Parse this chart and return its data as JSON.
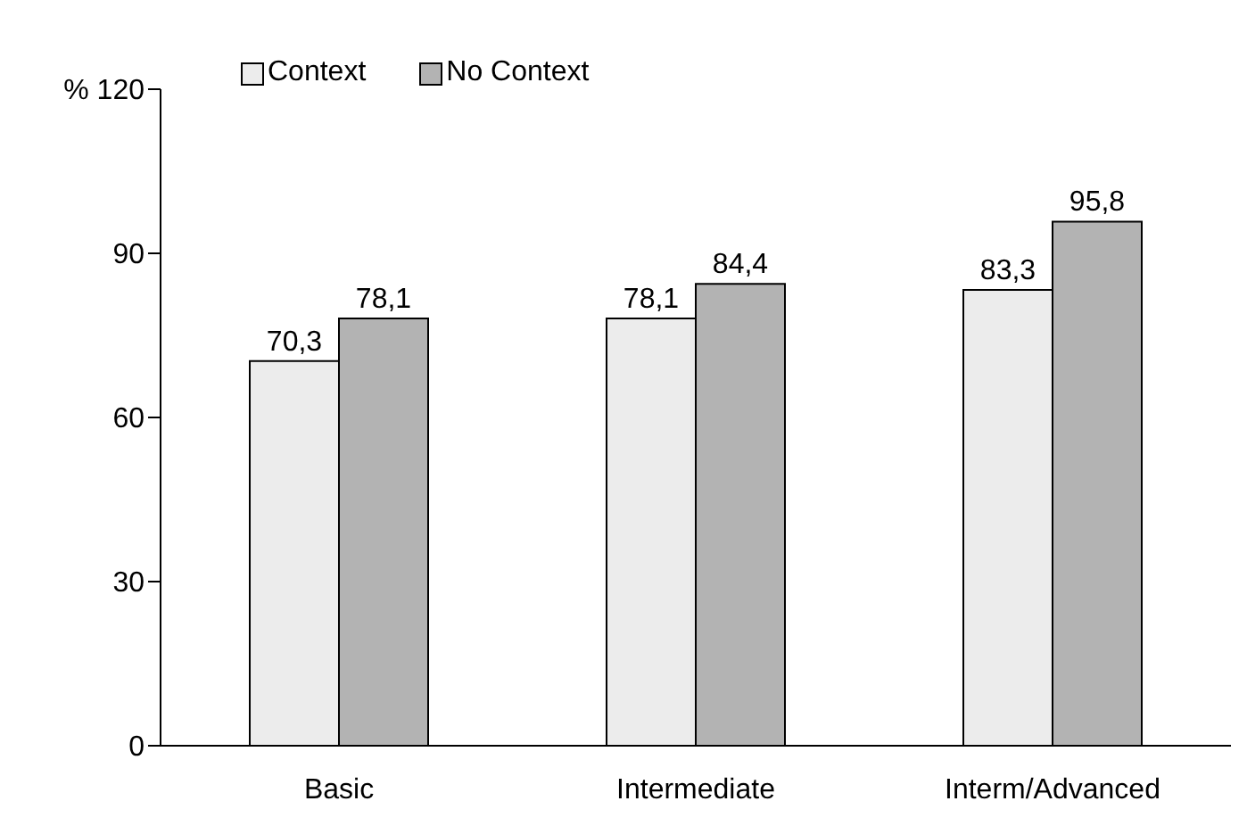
{
  "chart_data": {
    "type": "bar",
    "categories": [
      "Basic",
      "Intermediate",
      "Interm/Advanced"
    ],
    "series": [
      {
        "name": "Context",
        "color": "#ececec",
        "values": [
          70.3,
          78.1,
          83.3
        ],
        "value_labels": [
          "70,3",
          "78,1",
          "83,3"
        ]
      },
      {
        "name": "No Context",
        "color": "#b3b3b3",
        "values": [
          78.1,
          84.4,
          95.8
        ],
        "value_labels": [
          "78,1",
          "84,4",
          "95,8"
        ]
      }
    ],
    "ylim": [
      0,
      120
    ],
    "yticks": [
      0,
      30,
      60,
      90,
      {
        "value": 120,
        "label": "% 120"
      }
    ],
    "grid": false,
    "legend": "top left"
  }
}
